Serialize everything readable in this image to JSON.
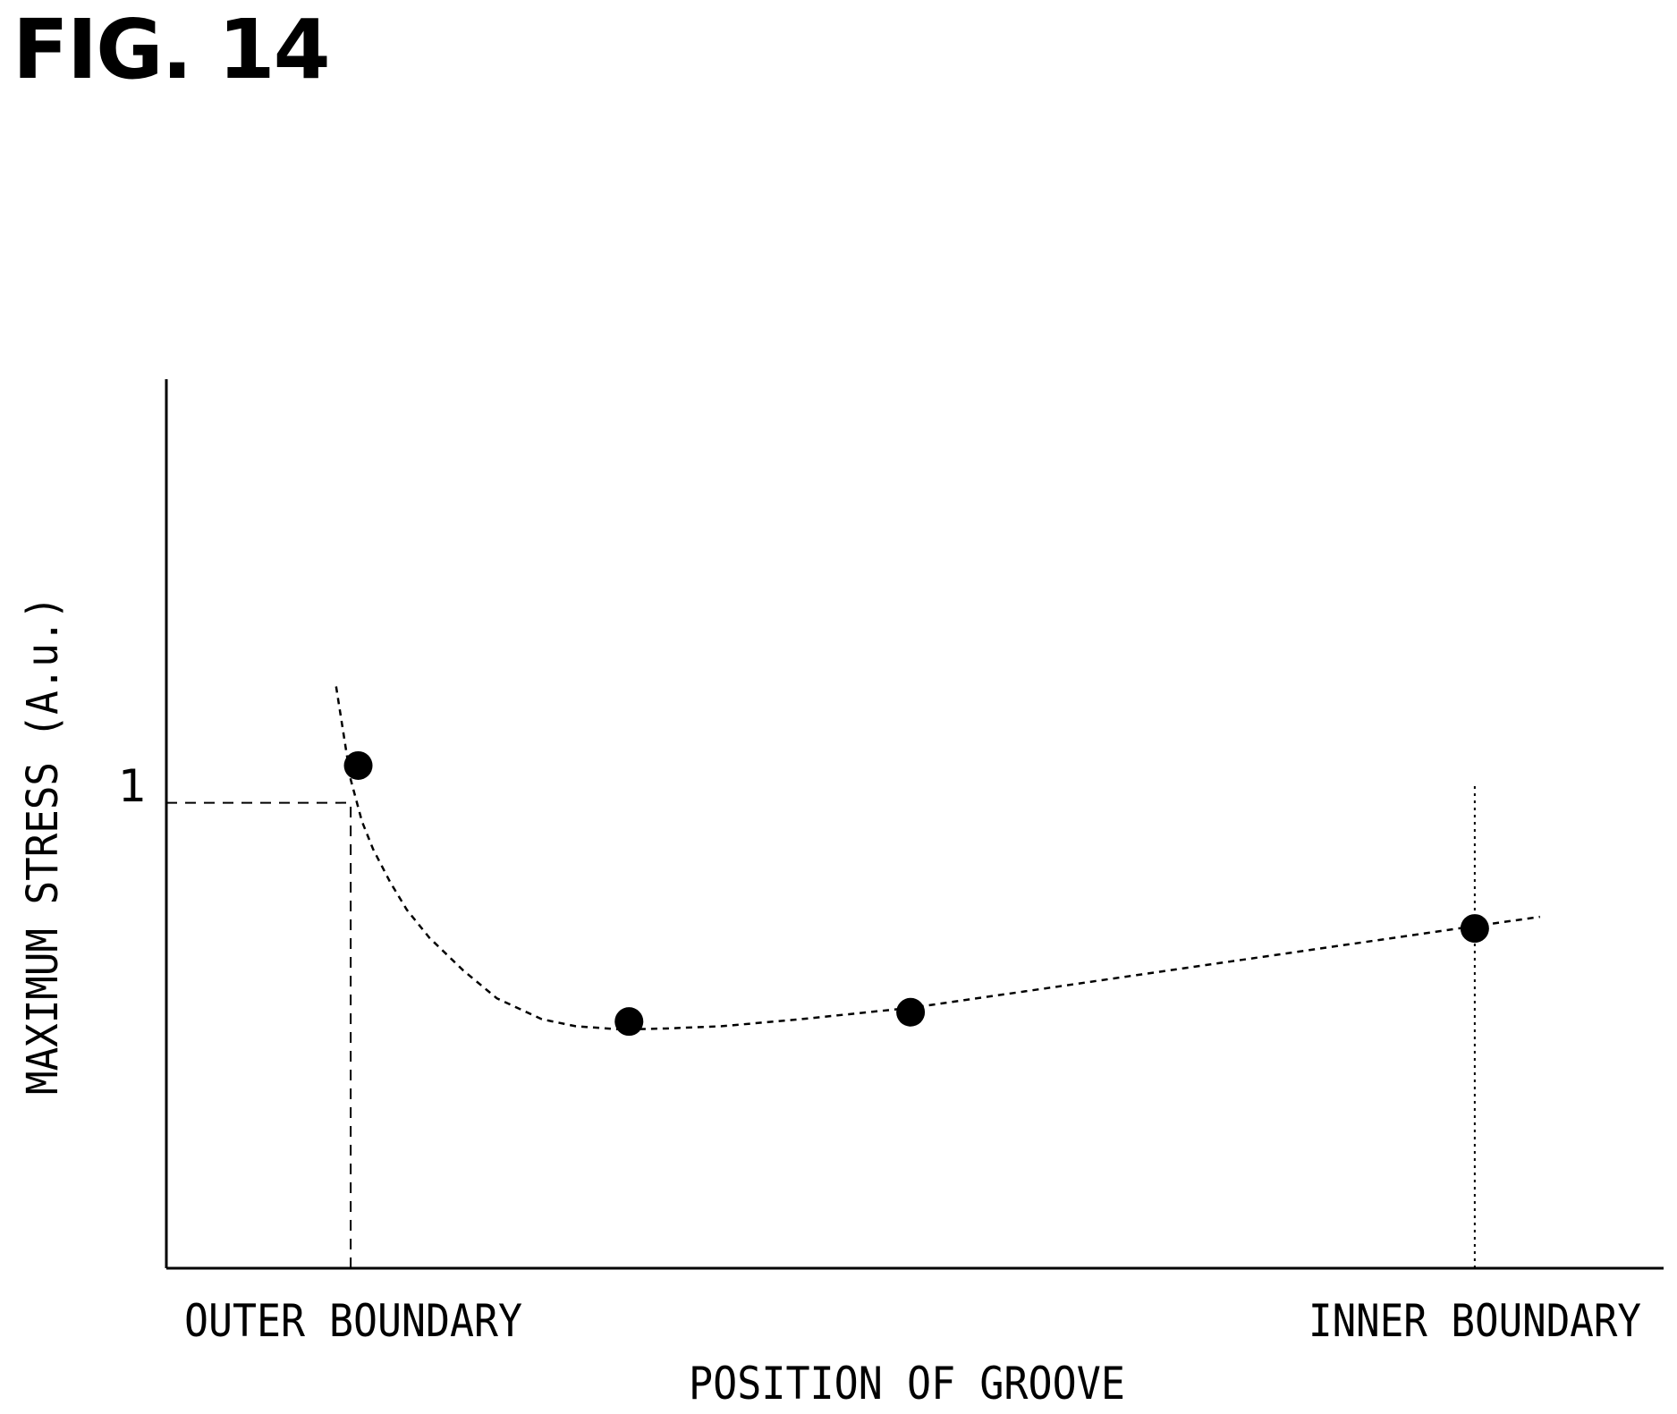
{
  "figure": {
    "label": "FIG. 14"
  },
  "chart_data": {
    "type": "scatter",
    "title": "",
    "xlabel": "POSITION OF GROOVE",
    "ylabel": "MAXIMUM STRESS (A.u.)",
    "x_tick_labels": [
      "OUTER BOUNDARY",
      "INNER BOUNDARY"
    ],
    "y_tick_labels": [
      "1"
    ],
    "xlim": [
      -0.164,
      1.168
    ],
    "ylim": [
      0,
      1.91
    ],
    "grid": false,
    "legend": "none",
    "points": [
      {
        "x": 0.0067,
        "y": 1.08
      },
      {
        "x": 0.2476,
        "y": 0.53
      },
      {
        "x": 0.4981,
        "y": 0.55
      },
      {
        "x": 1.0,
        "y": 0.73
      }
    ],
    "trend_curve": {
      "style": "dashed",
      "x": [
        -0.013,
        0.0,
        0.01,
        0.02,
        0.035,
        0.05,
        0.07,
        0.1,
        0.13,
        0.17,
        0.2,
        0.24,
        0.28,
        0.33,
        0.4,
        0.5,
        0.6,
        0.7,
        0.8,
        0.9,
        1.0,
        1.058
      ],
      "y": [
        1.25,
        1.05,
        0.96,
        0.9,
        0.83,
        0.77,
        0.71,
        0.64,
        0.58,
        0.535,
        0.52,
        0.513,
        0.515,
        0.52,
        0.535,
        0.56,
        0.595,
        0.63,
        0.665,
        0.7,
        0.735,
        0.755
      ]
    },
    "reference_lines": [
      {
        "orientation": "horizontal",
        "y": 1,
        "x_from": -0.164,
        "x_to": -0.0,
        "style": "dashed"
      },
      {
        "orientation": "vertical",
        "x": 0,
        "y_from": 0,
        "y_to": 1.0,
        "style": "dashed"
      },
      {
        "orientation": "vertical",
        "x": 1,
        "y_from": 0,
        "y_to": 1.04,
        "style": "dotted"
      }
    ]
  }
}
